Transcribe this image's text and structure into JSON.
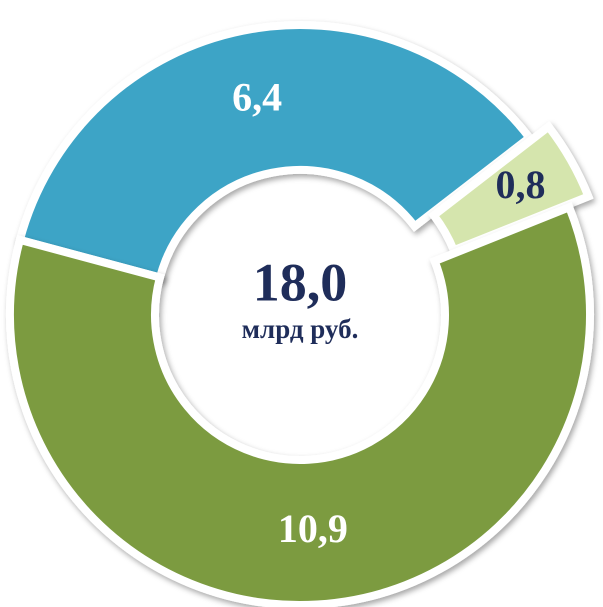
{
  "chart_data": {
    "type": "pie",
    "values": [
      6.4,
      0.8,
      10.9
    ],
    "value_labels": [
      "6,4",
      "0,8",
      "10,9"
    ],
    "colors": [
      "#3ea4c6",
      "#d5e5ad",
      "#7b9b41"
    ],
    "label_colors": [
      "#ffffff",
      "#1f2d5a",
      "#ffffff"
    ],
    "exploded": [
      false,
      true,
      false
    ],
    "total": {
      "value": 18.0,
      "label": "18,0"
    },
    "total_unit": "млрд руб."
  }
}
